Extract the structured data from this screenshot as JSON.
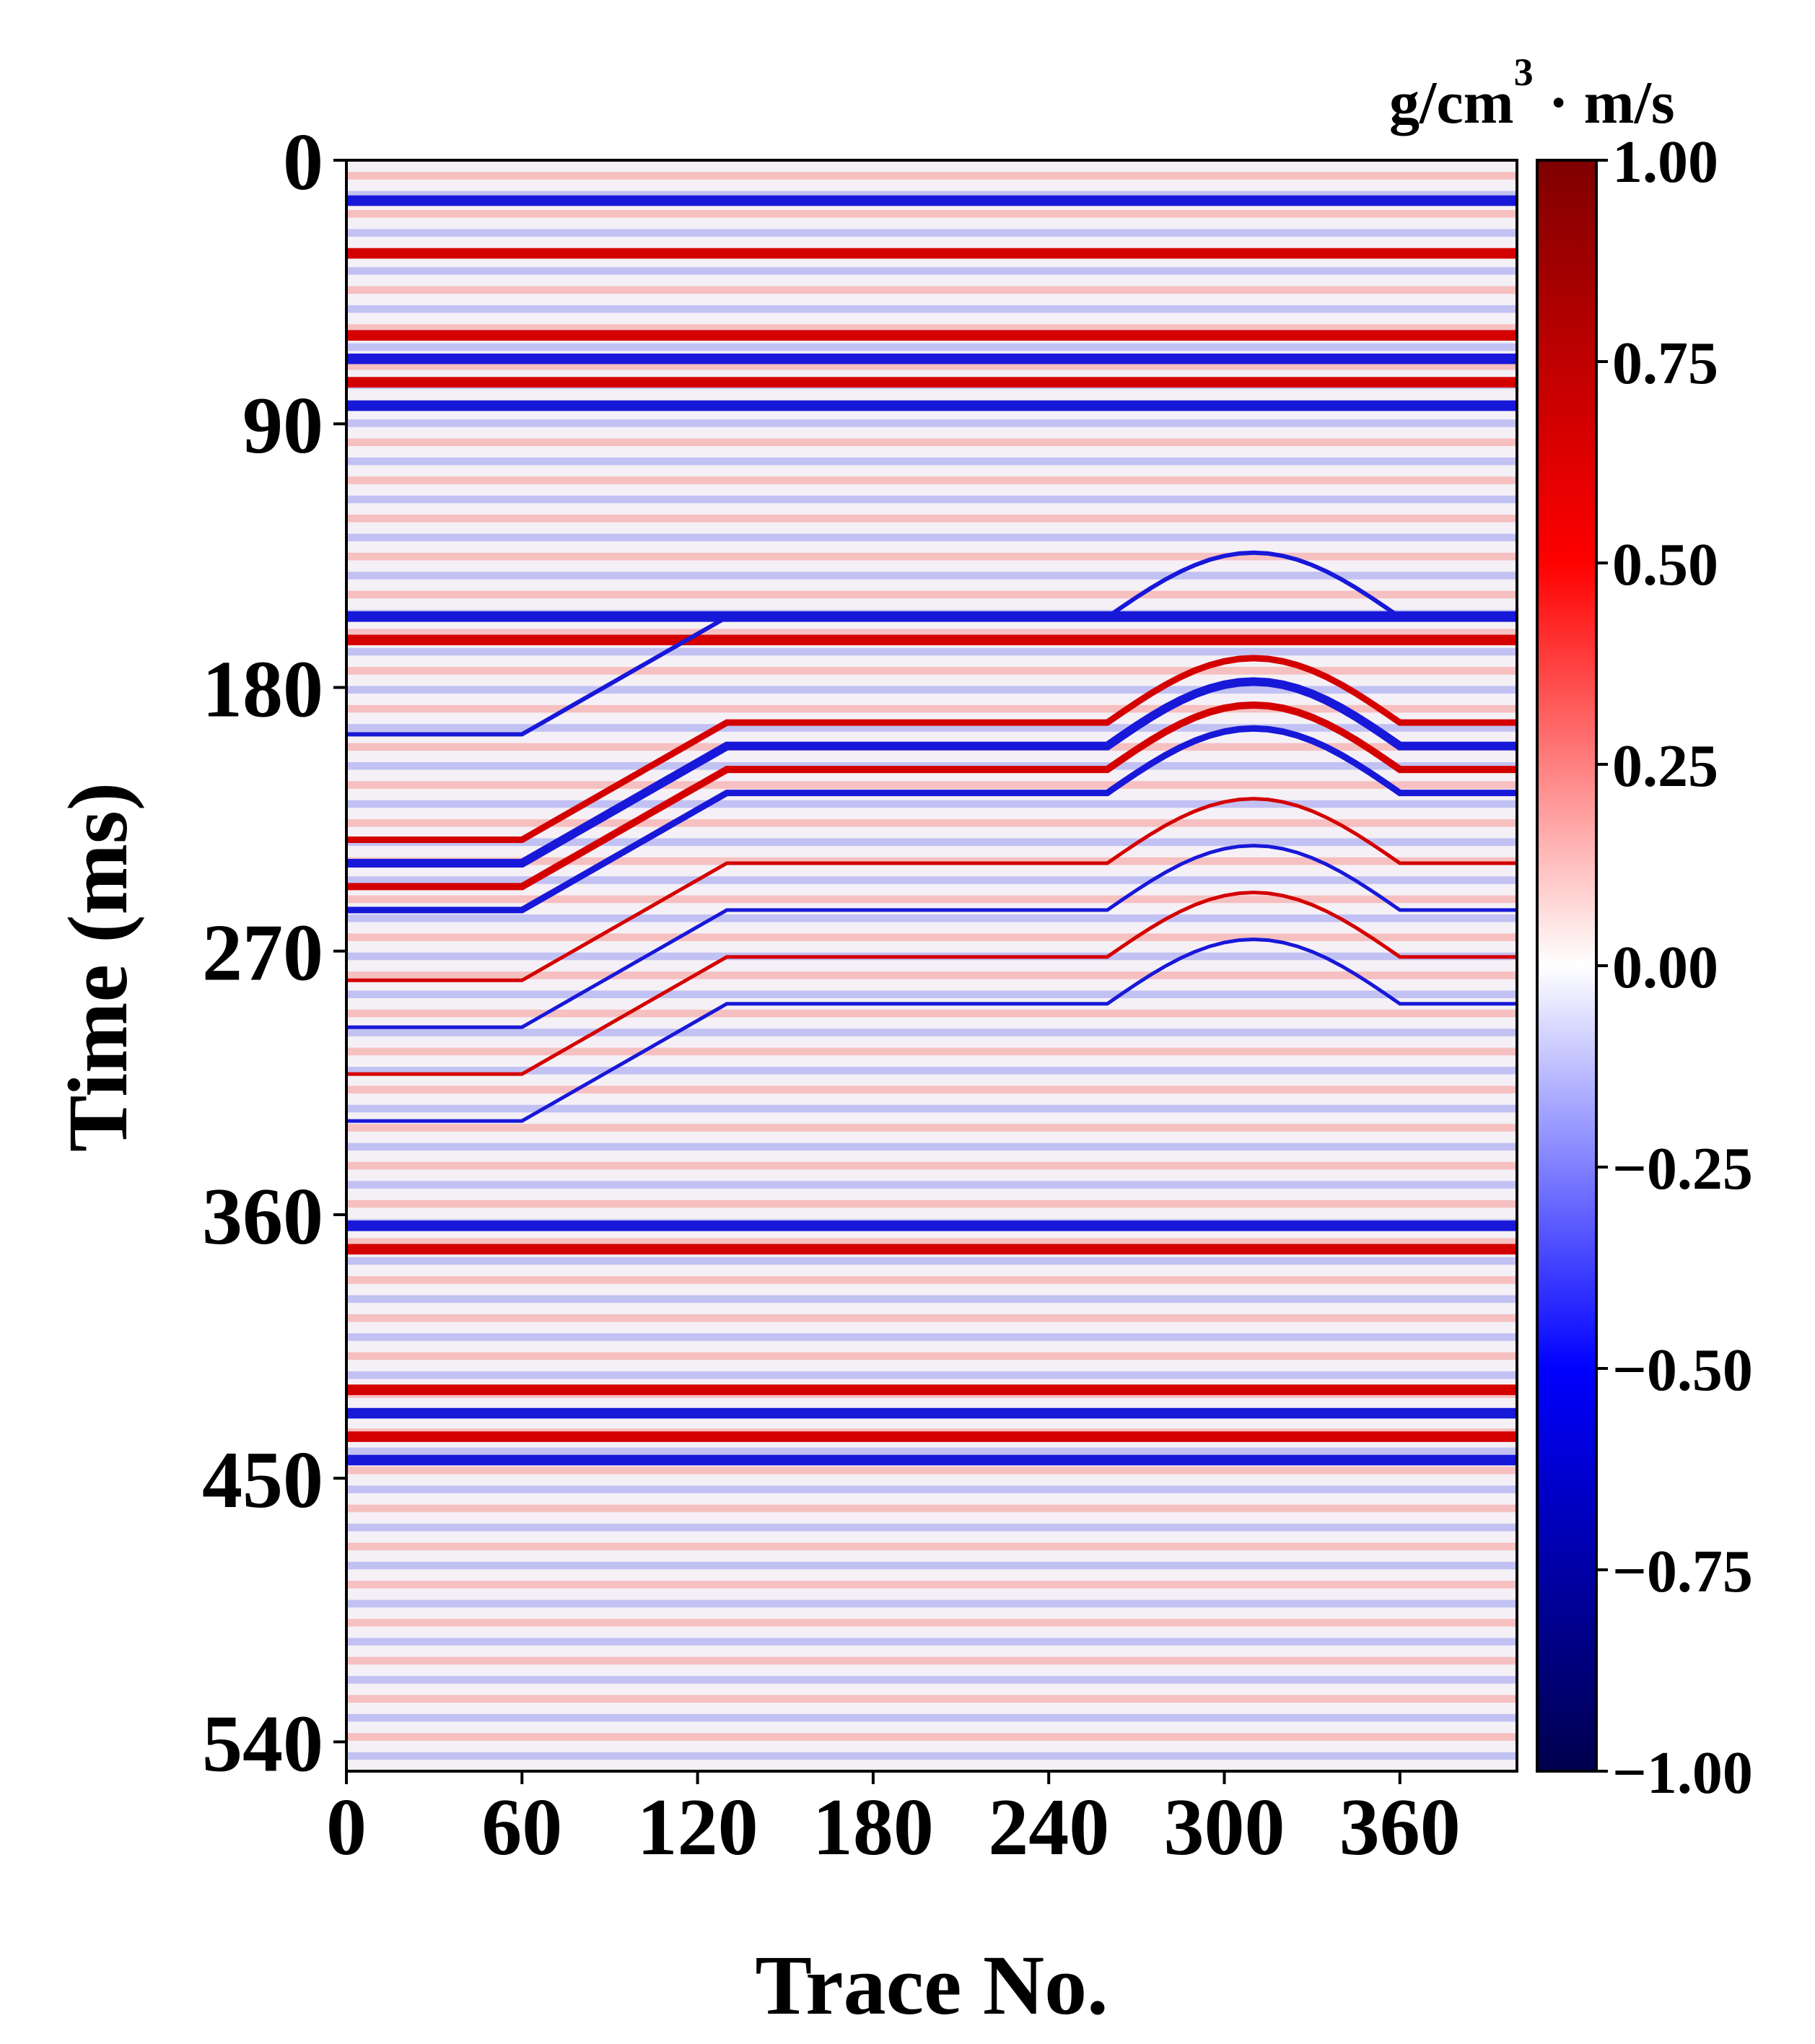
{
  "chart_data": {
    "type": "heatmap",
    "title": "",
    "xlabel": "Trace No.",
    "ylabel": "Time (ms)",
    "x_range": [
      0,
      400
    ],
    "y_range": [
      0,
      550
    ],
    "x_ticks": [
      0,
      60,
      120,
      180,
      240,
      300,
      360
    ],
    "y_ticks": [
      0,
      90,
      180,
      270,
      360,
      450,
      540
    ],
    "colorbar": {
      "label_main": "g/cm",
      "label_sup": "3",
      "label_tail": " · m/s",
      "range": [
        -1.0,
        1.0
      ],
      "ticks": [
        1.0,
        0.75,
        0.5,
        0.25,
        0.0,
        -0.25,
        -0.5,
        -0.75,
        -1.0
      ],
      "tick_labels": [
        "1.00",
        "0.75",
        "0.50",
        "0.25",
        "0.00",
        "−0.25",
        "−0.50",
        "−0.75",
        "−1.00"
      ],
      "colormap": "seismic",
      "colors": [
        "#00004c",
        "#0000ff",
        "#ffffff",
        "#ff0000",
        "#7f0000"
      ]
    },
    "description_values": {
      "horizons_ms": [
        12,
        30,
        58,
        66,
        74,
        82,
        100,
        112,
        126,
        146,
        154,
        162,
        370,
        400,
        418,
        426,
        434,
        442
      ],
      "fault_zone_ms": [
        160,
        340
      ]
    }
  }
}
